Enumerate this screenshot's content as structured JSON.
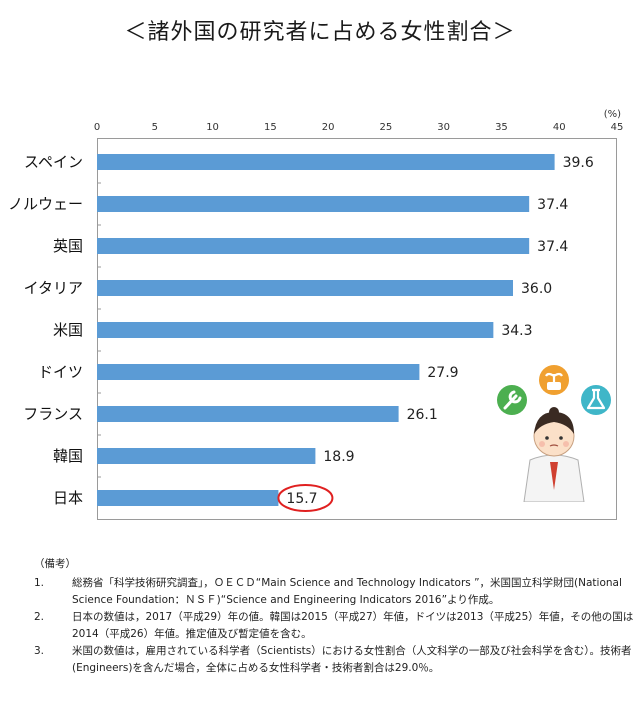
{
  "title": "＜諸外国の研究者に占める女性割合＞",
  "chart_data": {
    "type": "bar",
    "orientation": "horizontal",
    "unit": "(%)",
    "xlim": [
      0,
      45
    ],
    "ticks": [
      0,
      5,
      10,
      15,
      20,
      25,
      30,
      35,
      40,
      45
    ],
    "categories": [
      "スペイン",
      "ノルウェー",
      "英国",
      "イタリア",
      "米国",
      "ドイツ",
      "フランス",
      "韓国",
      "日本"
    ],
    "values": [
      39.6,
      37.4,
      37.4,
      36.0,
      34.3,
      27.9,
      26.1,
      18.9,
      15.7
    ],
    "value_labels": [
      "39.6",
      "37.4",
      "37.4",
      "36.0",
      "34.3",
      "27.9",
      "26.1",
      "18.9",
      "15.7"
    ],
    "highlight": "日本",
    "bar_color": "#5b9bd5",
    "highlight_color": "#e02020",
    "grid": false
  },
  "notes": {
    "heading": "（備考）",
    "items": [
      {
        "num": "1.",
        "text": "総務省「科学技術研究調査」，ＯＥＣＤ“Main Science and Technology Indicators ”，米国国立科学財団(National Science Foundation：ＮＳＦ)“Science and Engineering Indicators 2016”より作成。"
      },
      {
        "num": "2.",
        "text": "日本の数値は，2017（平成29）年の値。韓国は2015（平成27）年値，ドイツは2013（平成25）年値，その他の国は2014（平成26）年値。推定値及び暫定値を含む。"
      },
      {
        "num": "3.",
        "text": "米国の数値は，雇用されている科学者（Scientists）における女性割合（人文科学の一部及び社会科学を含む）。技術者(Engineers)を含んだ場合，全体に占める女性科学者・技術者割合は29.0％。"
      }
    ]
  },
  "illustration": {
    "icons": [
      "wrench-icon",
      "plant-icon",
      "flask-icon"
    ],
    "colors": {
      "wrench": "#4caf50",
      "plant": "#f0a030",
      "flask": "#3fb6c8"
    }
  }
}
